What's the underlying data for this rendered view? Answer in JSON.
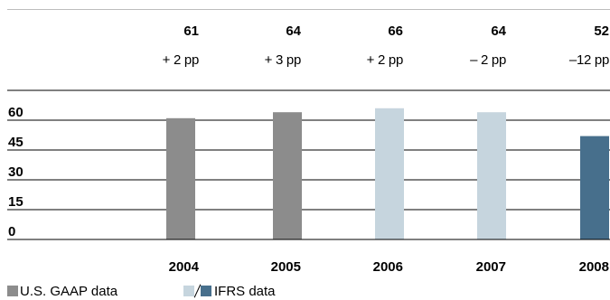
{
  "chart_data": {
    "type": "bar",
    "categories": [
      "2004",
      "2005",
      "2006",
      "2007",
      "2008"
    ],
    "values": [
      61,
      64,
      66,
      64,
      52
    ],
    "value_labels": [
      "61",
      "64",
      "66",
      "64",
      "52"
    ],
    "change_labels": [
      "+ 2 pp",
      "+ 3 pp",
      "+ 2 pp",
      "– 2 pp",
      "–12 pp"
    ],
    "y_ticks": [
      0,
      15,
      30,
      45,
      60
    ],
    "ylim": [
      0,
      75
    ],
    "grid": true,
    "bar_colors": [
      "#8c8c8c",
      "#8c8c8c",
      "#c6d5de",
      "#c6d5de",
      "#476f8c"
    ],
    "legend": {
      "gaap_label": "U.S. GAAP data",
      "ifrs_label": "IFRS data",
      "gaap_color": "#8c8c8c",
      "ifrs_light_color": "#c6d5de",
      "ifrs_dark_color": "#476f8c"
    }
  }
}
